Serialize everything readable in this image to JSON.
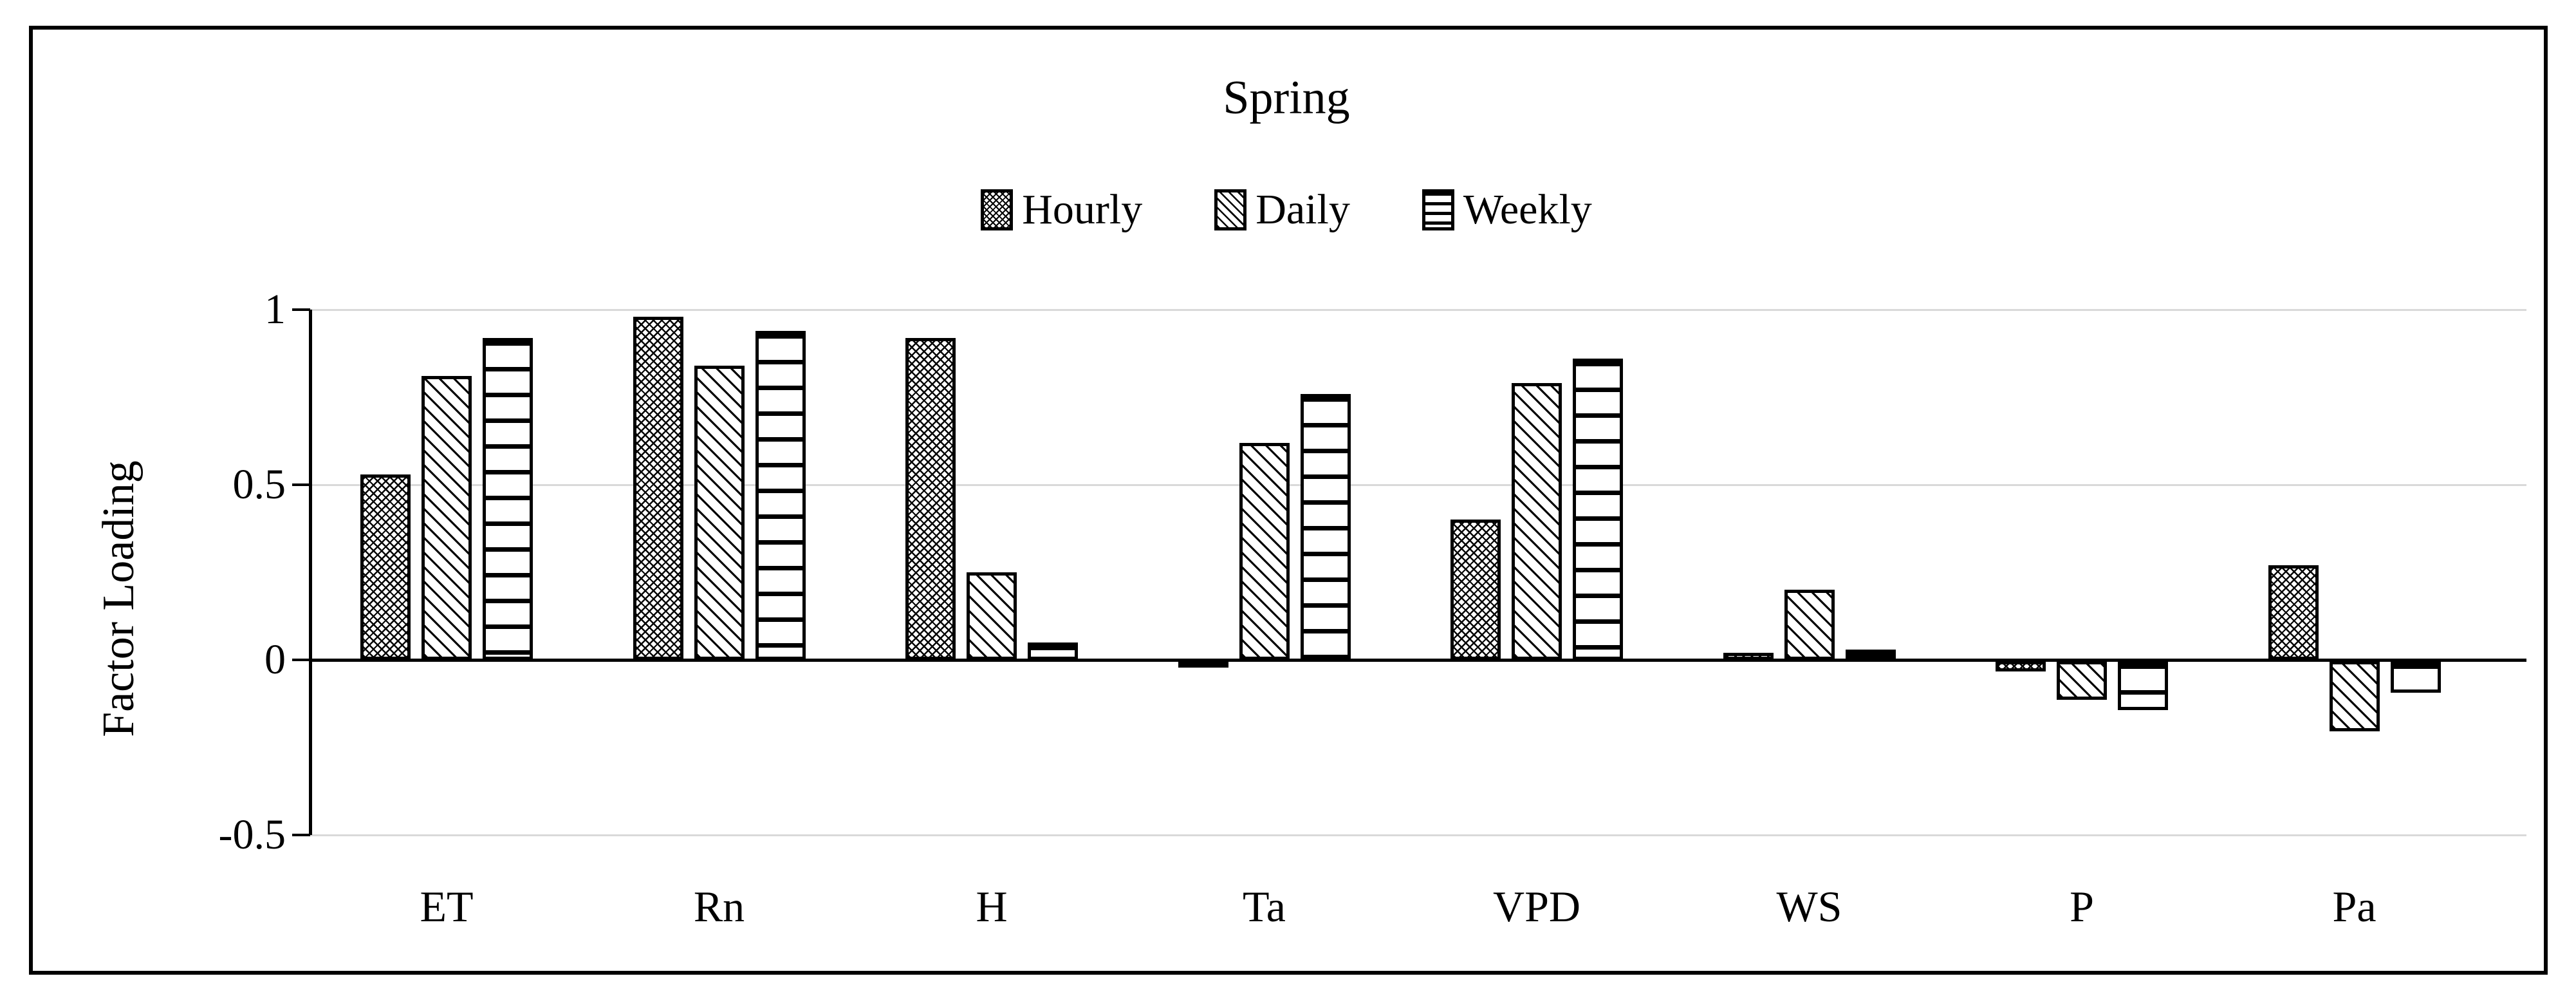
{
  "figure": {
    "title": "Spring",
    "y_axis_title": "Factor Loading"
  },
  "colors": {
    "background": "#ffffff",
    "frame_border": "#000000",
    "bar_outline": "#000000",
    "gridline": "#d9d9d9",
    "axis_line": "#000000",
    "text": "#000000"
  },
  "chart_data": {
    "type": "bar",
    "title": "Spring",
    "xlabel": "",
    "ylabel": "Factor Loading",
    "categories": [
      "ET",
      "Rn",
      "H",
      "Ta",
      "VPD",
      "WS",
      "P",
      "Pa"
    ],
    "series": [
      {
        "name": "Hourly",
        "pattern": "crosshatch",
        "values": [
          0.53,
          0.98,
          0.92,
          -0.01,
          0.4,
          0.02,
          -0.03,
          0.27
        ]
      },
      {
        "name": "Daily",
        "pattern": "diagonal",
        "values": [
          0.81,
          0.84,
          0.25,
          0.62,
          0.79,
          0.2,
          -0.11,
          -0.2
        ]
      },
      {
        "name": "Weekly",
        "pattern": "horizontal",
        "values": [
          0.92,
          0.94,
          0.05,
          0.76,
          0.86,
          0.03,
          -0.14,
          -0.09
        ]
      }
    ],
    "ylim": [
      -0.5,
      1
    ],
    "yticks": [
      1,
      0.5,
      0,
      -0.5
    ],
    "ytick_labels": [
      "1",
      "0.5",
      "0",
      "-0.5"
    ],
    "grid": true,
    "legend_position": "top",
    "bar_fill": "white-with-black-hatch"
  }
}
